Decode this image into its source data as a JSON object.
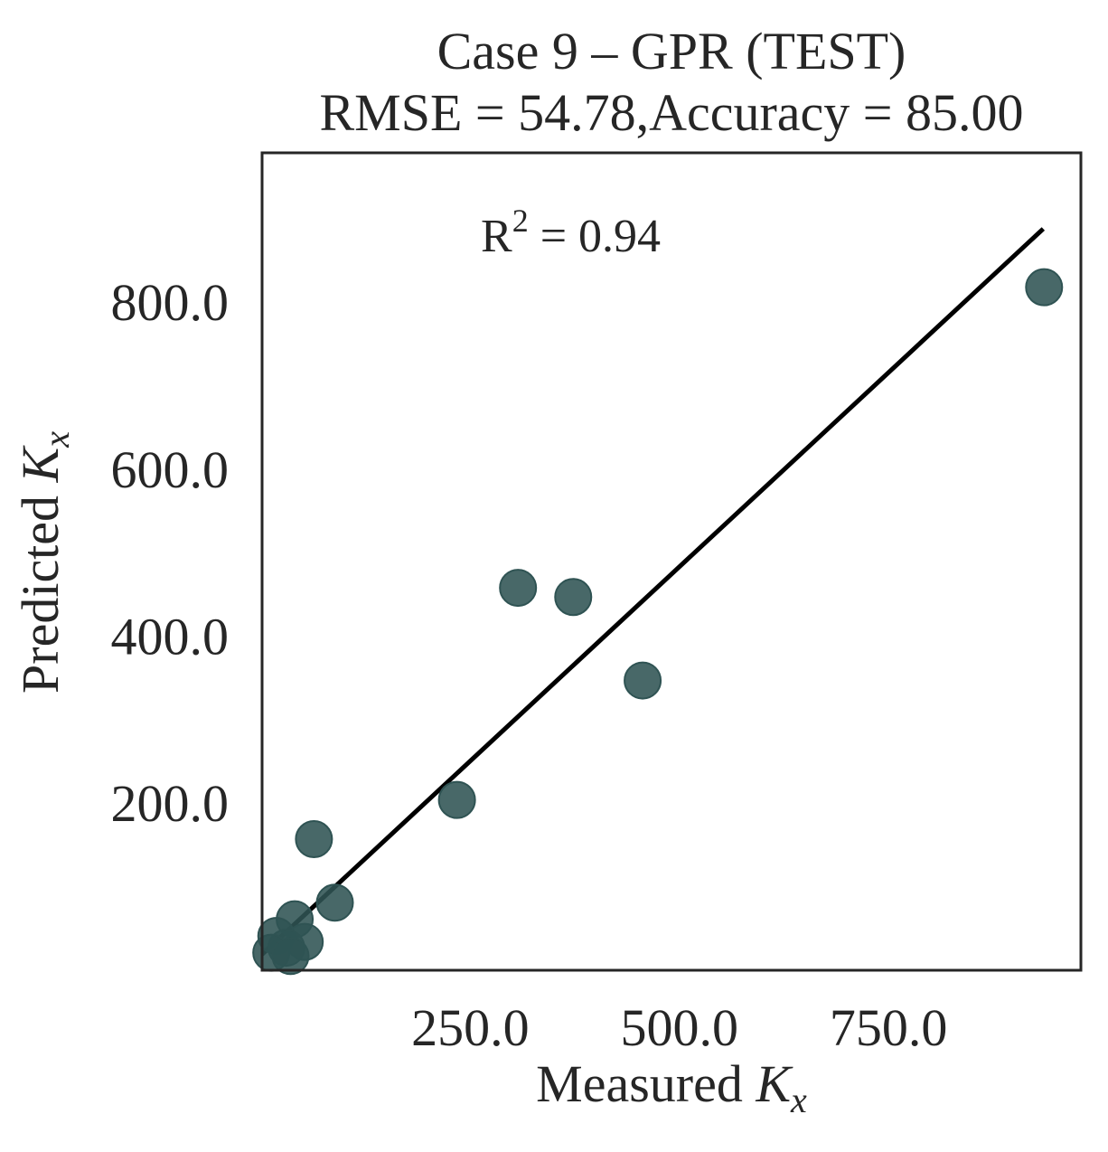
{
  "chart_data": {
    "type": "scatter",
    "title": "Case 9 – GPR (TEST)",
    "subtitle": "RMSE = 54.78,Accuracy = 85.00",
    "xlabel": {
      "prefix": "Measured ",
      "symbol": "K",
      "subscript": "x"
    },
    "ylabel": {
      "prefix": "Predicted ",
      "symbol": "K",
      "subscript": "x"
    },
    "annotation": {
      "prefix": "R",
      "superscript": "2",
      "suffix": " = 0.94"
    },
    "xlim": [
      1,
      980
    ],
    "ylim": [
      1,
      980
    ],
    "x_ticks": [
      250,
      500,
      750
    ],
    "x_tick_labels": [
      "250.0",
      "500.0",
      "750.0"
    ],
    "y_ticks": [
      200,
      400,
      600,
      800
    ],
    "y_tick_labels": [
      "200.0",
      "400.0",
      "600.0",
      "800.0"
    ],
    "grid": false,
    "colors": {
      "points": "#2f5353",
      "line": "#000000",
      "frame": "#262626"
    },
    "fit_line": {
      "x": [
        1,
        935
      ],
      "y": [
        20,
        889
      ]
    },
    "points": [
      {
        "x": 936,
        "y": 819
      },
      {
        "x": 307,
        "y": 459
      },
      {
        "x": 373,
        "y": 448
      },
      {
        "x": 456,
        "y": 348
      },
      {
        "x": 234,
        "y": 205
      },
      {
        "x": 63,
        "y": 158
      },
      {
        "x": 88,
        "y": 82
      },
      {
        "x": 40,
        "y": 62
      },
      {
        "x": 18,
        "y": 42
      },
      {
        "x": 52,
        "y": 35
      },
      {
        "x": 30,
        "y": 28
      },
      {
        "x": 12,
        "y": 22
      },
      {
        "x": 35,
        "y": 18
      }
    ]
  }
}
